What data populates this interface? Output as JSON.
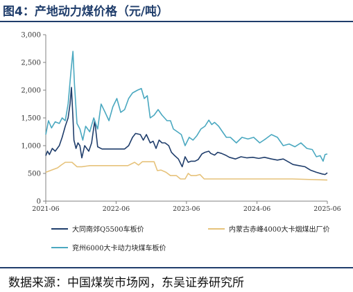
{
  "title": "图4：产地动力煤价格（元/吨）",
  "source": "数据来源：中国煤炭市场网，东吴证券研究所",
  "colors": {
    "accent": "#1f3d6b",
    "axis": "#808080"
  },
  "chart_data": {
    "type": "line",
    "x_ticks": [
      "2021-06",
      "2022-06",
      "2023-06",
      "2024-06",
      "2025-06"
    ],
    "xlim": [
      "2021-06-01",
      "2025-06-01"
    ],
    "y_ticks": [
      "0",
      "500",
      "1,000",
      "1,500",
      "2,000",
      "2,500",
      "3,000"
    ],
    "ylim": [
      0,
      3000
    ],
    "grid": false,
    "legend_position": "bottom",
    "series": [
      {
        "name": "大同南郊Q5500车板价",
        "color": "#1f3d6b",
        "points": [
          [
            "2021-06-01",
            820
          ],
          [
            "2021-06-10",
            900
          ],
          [
            "2021-06-20",
            840
          ],
          [
            "2021-07-05",
            950
          ],
          [
            "2021-07-20",
            900
          ],
          [
            "2021-08-10",
            1000
          ],
          [
            "2021-08-25",
            1150
          ],
          [
            "2021-09-10",
            1350
          ],
          [
            "2021-09-25",
            1500
          ],
          [
            "2021-10-05",
            1750
          ],
          [
            "2021-10-12",
            2050
          ],
          [
            "2021-10-20",
            1500
          ],
          [
            "2021-10-25",
            1100
          ],
          [
            "2021-11-05",
            950
          ],
          [
            "2021-11-15",
            1050
          ],
          [
            "2021-11-25",
            1000
          ],
          [
            "2021-12-05",
            780
          ],
          [
            "2021-12-20",
            1000
          ],
          [
            "2022-01-10",
            900
          ],
          [
            "2022-01-25",
            1050
          ],
          [
            "2022-02-10",
            1450
          ],
          [
            "2022-02-25",
            980
          ],
          [
            "2022-03-20",
            940
          ],
          [
            "2022-04-15",
            940
          ],
          [
            "2022-06-01",
            940
          ],
          [
            "2022-07-15",
            940
          ],
          [
            "2022-08-05",
            1000
          ],
          [
            "2022-08-25",
            1150
          ],
          [
            "2022-09-10",
            1220
          ],
          [
            "2022-10-05",
            1200
          ],
          [
            "2022-10-20",
            1100
          ],
          [
            "2022-11-05",
            1200
          ],
          [
            "2022-11-25",
            1050
          ],
          [
            "2022-12-10",
            1080
          ],
          [
            "2022-12-25",
            950
          ],
          [
            "2023-01-10",
            1100
          ],
          [
            "2023-01-25",
            1050
          ],
          [
            "2023-02-10",
            1050
          ],
          [
            "2023-03-01",
            1000
          ],
          [
            "2023-03-15",
            880
          ],
          [
            "2023-04-01",
            820
          ],
          [
            "2023-04-20",
            760
          ],
          [
            "2023-05-10",
            620
          ],
          [
            "2023-05-25",
            800
          ],
          [
            "2023-06-10",
            700
          ],
          [
            "2023-06-25",
            720
          ],
          [
            "2023-07-15",
            720
          ],
          [
            "2023-08-01",
            750
          ],
          [
            "2023-08-20",
            850
          ],
          [
            "2023-09-05",
            880
          ],
          [
            "2023-09-25",
            900
          ],
          [
            "2023-10-05",
            860
          ],
          [
            "2023-10-25",
            830
          ],
          [
            "2023-11-10",
            880
          ],
          [
            "2023-11-30",
            860
          ],
          [
            "2023-12-20",
            830
          ],
          [
            "2024-01-10",
            790
          ],
          [
            "2024-02-10",
            760
          ],
          [
            "2024-03-10",
            800
          ],
          [
            "2024-04-10",
            780
          ],
          [
            "2024-05-10",
            790
          ],
          [
            "2024-06-10",
            770
          ],
          [
            "2024-07-10",
            790
          ],
          [
            "2024-08-15",
            760
          ],
          [
            "2024-09-15",
            740
          ],
          [
            "2024-10-15",
            760
          ],
          [
            "2024-11-05",
            720
          ],
          [
            "2024-12-05",
            660
          ],
          [
            "2025-01-05",
            640
          ],
          [
            "2025-02-05",
            620
          ],
          [
            "2025-03-05",
            560
          ],
          [
            "2025-04-05",
            520
          ],
          [
            "2025-05-05",
            490
          ],
          [
            "2025-05-20",
            480
          ],
          [
            "2025-06-01",
            510
          ]
        ]
      },
      {
        "name": "内蒙古赤峰4000大卡烟煤出厂价",
        "color": "#e6c27a",
        "points": [
          [
            "2021-06-01",
            520
          ],
          [
            "2021-07-01",
            560
          ],
          [
            "2021-08-01",
            600
          ],
          [
            "2021-08-20",
            650
          ],
          [
            "2021-09-10",
            700
          ],
          [
            "2021-10-15",
            700
          ],
          [
            "2021-11-10",
            620
          ],
          [
            "2021-12-05",
            620
          ],
          [
            "2022-01-15",
            640
          ],
          [
            "2022-02-15",
            640
          ],
          [
            "2022-06-01",
            640
          ],
          [
            "2022-08-01",
            640
          ],
          [
            "2022-09-05",
            700
          ],
          [
            "2022-09-25",
            650
          ],
          [
            "2022-10-15",
            710
          ],
          [
            "2022-12-15",
            710
          ],
          [
            "2023-01-01",
            550
          ],
          [
            "2023-01-20",
            560
          ],
          [
            "2023-02-15",
            520
          ],
          [
            "2023-03-10",
            460
          ],
          [
            "2023-04-10",
            460
          ],
          [
            "2023-05-01",
            400
          ],
          [
            "2023-05-25",
            400
          ],
          [
            "2023-06-10",
            500
          ],
          [
            "2023-06-25",
            460
          ],
          [
            "2023-07-20",
            460
          ],
          [
            "2023-08-10",
            480
          ],
          [
            "2023-09-01",
            400
          ],
          [
            "2023-12-01",
            400
          ],
          [
            "2024-06-01",
            400
          ],
          [
            "2024-12-01",
            400
          ],
          [
            "2025-06-01",
            380
          ]
        ]
      },
      {
        "name": "兖州6000大卡动力块煤车板价",
        "color": "#4aa8c0",
        "points": [
          [
            "2021-06-01",
            1200
          ],
          [
            "2021-06-15",
            1450
          ],
          [
            "2021-07-01",
            1320
          ],
          [
            "2021-07-20",
            1430
          ],
          [
            "2021-08-10",
            1400
          ],
          [
            "2021-08-25",
            1500
          ],
          [
            "2021-09-10",
            1450
          ],
          [
            "2021-09-25",
            1750
          ],
          [
            "2021-10-10",
            2350
          ],
          [
            "2021-10-20",
            2700
          ],
          [
            "2021-10-28",
            2100
          ],
          [
            "2021-11-10",
            1400
          ],
          [
            "2021-11-25",
            1300
          ],
          [
            "2021-12-10",
            1100
          ],
          [
            "2021-12-25",
            1350
          ],
          [
            "2022-01-15",
            1250
          ],
          [
            "2022-02-05",
            1500
          ],
          [
            "2022-02-25",
            1300
          ],
          [
            "2022-03-15",
            1750
          ],
          [
            "2022-04-05",
            1600
          ],
          [
            "2022-04-25",
            1450
          ],
          [
            "2022-05-15",
            1700
          ],
          [
            "2022-06-05",
            1850
          ],
          [
            "2022-06-25",
            1600
          ],
          [
            "2022-07-15",
            1650
          ],
          [
            "2022-08-05",
            1850
          ],
          [
            "2022-08-25",
            1950
          ],
          [
            "2022-09-20",
            2000
          ],
          [
            "2022-10-10",
            2030
          ],
          [
            "2022-10-25",
            1850
          ],
          [
            "2022-11-10",
            1900
          ],
          [
            "2022-11-25",
            1500
          ],
          [
            "2022-12-15",
            1550
          ],
          [
            "2023-01-05",
            1650
          ],
          [
            "2023-01-25",
            1550
          ],
          [
            "2023-02-20",
            1450
          ],
          [
            "2023-03-10",
            1450
          ],
          [
            "2023-03-25",
            1300
          ],
          [
            "2023-04-15",
            1250
          ],
          [
            "2023-05-05",
            1200
          ],
          [
            "2023-05-25",
            1000
          ],
          [
            "2023-06-15",
            1150
          ],
          [
            "2023-07-05",
            1100
          ],
          [
            "2023-07-25",
            1180
          ],
          [
            "2023-08-15",
            1300
          ],
          [
            "2023-09-05",
            1350
          ],
          [
            "2023-09-25",
            1460
          ],
          [
            "2023-10-10",
            1380
          ],
          [
            "2023-10-25",
            1420
          ],
          [
            "2023-11-15",
            1350
          ],
          [
            "2023-12-05",
            1250
          ],
          [
            "2023-12-25",
            1150
          ],
          [
            "2024-01-15",
            1150
          ],
          [
            "2024-02-15",
            1050
          ],
          [
            "2024-03-15",
            1150
          ],
          [
            "2024-04-15",
            1120
          ],
          [
            "2024-05-15",
            1150
          ],
          [
            "2024-06-15",
            1050
          ],
          [
            "2024-07-15",
            1120
          ],
          [
            "2024-08-15",
            1200
          ],
          [
            "2024-09-15",
            1150
          ],
          [
            "2024-10-15",
            1000
          ],
          [
            "2024-11-15",
            1030
          ],
          [
            "2024-12-15",
            980
          ],
          [
            "2025-01-15",
            1050
          ],
          [
            "2025-02-15",
            950
          ],
          [
            "2025-03-15",
            930
          ],
          [
            "2025-04-05",
            800
          ],
          [
            "2025-04-25",
            820
          ],
          [
            "2025-05-10",
            720
          ],
          [
            "2025-05-20",
            840
          ],
          [
            "2025-06-01",
            850
          ]
        ]
      }
    ]
  }
}
